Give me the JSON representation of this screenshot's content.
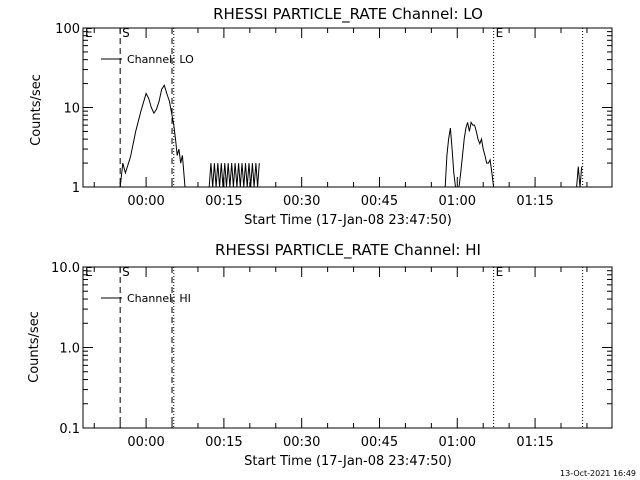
{
  "chart_data": [
    {
      "type": "line",
      "title": "RHESSI PARTICLE_RATE Channel: LO",
      "xlabel": "Start Time (17-Jan-08 23:47:50)",
      "ylabel": "Counts/sec",
      "yscale": "log",
      "ylim": [
        1,
        100
      ],
      "xlim": [
        "23:47:50",
        "01:29:50"
      ],
      "yticks": [
        "1",
        "10",
        "100"
      ],
      "xticks": [
        "00:00",
        "00:15",
        "00:30",
        "00:45",
        "01:00",
        "01:15"
      ],
      "grid": false,
      "legend_position": "top-left",
      "series": [
        {
          "name": "Channel: LO",
          "x": [
            "23:55:00",
            "23:55:30",
            "23:56:00",
            "23:57:00",
            "23:58:00",
            "23:59:00",
            "00:00:00",
            "00:00:30",
            "00:01:00",
            "00:01:30",
            "00:02:00",
            "00:02:30",
            "00:03:00",
            "00:03:30",
            "00:04:00",
            "00:04:30",
            "00:05:00",
            "00:05:20",
            "00:05:40",
            "00:06:00",
            "00:06:20",
            "00:06:40",
            "00:07:00",
            "00:07:30",
            "00:12:10",
            "00:12:30",
            "00:12:50",
            "00:13:10",
            "00:13:30",
            "00:13:50",
            "00:14:10",
            "00:14:30",
            "00:14:50",
            "00:15:10",
            "00:15:30",
            "00:15:50",
            "00:16:10",
            "00:16:30",
            "00:16:50",
            "00:17:10",
            "00:17:30",
            "00:17:50",
            "00:18:10",
            "00:18:30",
            "00:18:50",
            "00:19:10",
            "00:19:30",
            "00:19:50",
            "00:20:10",
            "00:20:30",
            "00:20:50",
            "00:21:10",
            "00:21:30",
            "00:21:50",
            "00:57:40",
            "00:58:00",
            "00:58:20",
            "00:58:40",
            "00:59:00",
            "00:59:20",
            "00:59:40",
            "01:00:00",
            "01:00:20",
            "01:00:40",
            "01:01:00",
            "01:01:20",
            "01:01:40",
            "01:02:00",
            "01:02:20",
            "01:02:40",
            "01:03:00",
            "01:03:20",
            "01:03:40",
            "01:04:00",
            "01:04:20",
            "01:04:40",
            "01:05:00",
            "01:05:20",
            "01:05:40",
            "01:06:00",
            "01:06:20",
            "01:06:40",
            "01:07:00",
            "01:23:00",
            "01:23:20",
            "01:23:40",
            "01:24:00"
          ],
          "values": [
            1,
            2,
            1.5,
            2.4,
            5,
            9,
            15,
            13,
            10,
            8.5,
            9.5,
            12,
            17,
            19,
            15,
            12,
            8,
            6,
            4,
            2.5,
            3,
            2,
            2.5,
            1,
            1,
            2,
            1,
            2,
            1,
            2,
            1,
            2,
            1,
            2,
            1,
            2,
            1,
            2,
            1,
            2,
            1,
            2,
            1,
            2,
            1,
            2,
            1,
            2,
            1,
            2,
            1,
            2,
            1,
            2,
            1,
            2.5,
            4,
            5.5,
            3,
            1.5,
            1,
            1,
            1,
            1.5,
            2.5,
            4,
            5.5,
            6.5,
            5,
            6.5,
            6,
            6,
            5,
            4,
            3.5,
            4,
            3,
            2.5,
            2,
            2,
            2.2,
            1.5,
            1,
            1,
            1.8,
            1,
            1.8
          ]
        }
      ],
      "annotations": [
        {
          "label": "E",
          "x": "23:47:50",
          "style": "dotted"
        },
        {
          "label": "S",
          "x": "23:55:00",
          "style": "dashed"
        },
        {
          "label": "",
          "x": "00:05:00",
          "style": "dashed"
        },
        {
          "label": "",
          "x": "00:05:20",
          "style": "dotted"
        },
        {
          "label": "E",
          "x": "01:07:00",
          "style": "dotted"
        },
        {
          "label": "",
          "x": "01:24:10",
          "style": "dotted"
        }
      ]
    },
    {
      "type": "line",
      "title": "RHESSI PARTICLE_RATE Channel: HI",
      "xlabel": "Start Time (17-Jan-08 23:47:50)",
      "ylabel": "Counts/sec",
      "yscale": "log",
      "ylim": [
        0.1,
        10
      ],
      "xlim": [
        "23:47:50",
        "01:29:50"
      ],
      "yticks": [
        "0.1",
        "1.0",
        "10.0"
      ],
      "xticks": [
        "00:00",
        "00:15",
        "00:30",
        "00:45",
        "01:00",
        "01:15"
      ],
      "grid": false,
      "legend_position": "top-left",
      "series": [
        {
          "name": "Channel: HI",
          "x": [],
          "values": []
        }
      ],
      "annotations": [
        {
          "label": "E",
          "x": "23:47:50",
          "style": "dotted"
        },
        {
          "label": "S",
          "x": "23:55:00",
          "style": "dashed"
        },
        {
          "label": "",
          "x": "00:05:00",
          "style": "dashed"
        },
        {
          "label": "",
          "x": "00:05:20",
          "style": "dotted"
        },
        {
          "label": "E",
          "x": "01:07:00",
          "style": "dotted"
        },
        {
          "label": "",
          "x": "01:24:10",
          "style": "dotted"
        }
      ]
    }
  ],
  "footer": {
    "timestamp": "13-Oct-2021 16:49"
  }
}
